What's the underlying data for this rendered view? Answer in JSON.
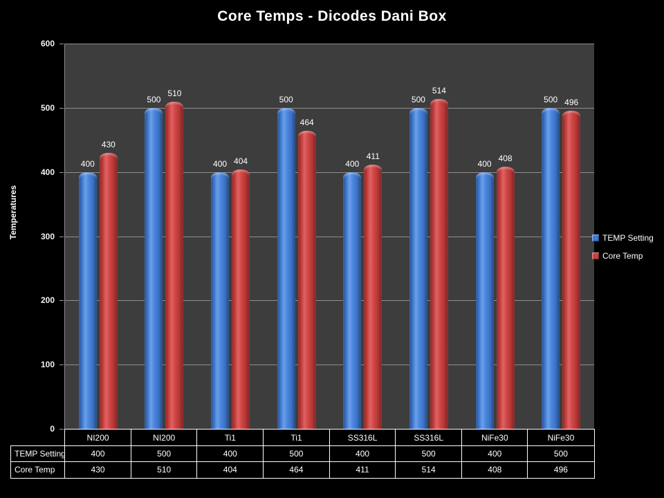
{
  "chart_data": {
    "type": "bar",
    "title": "Core Temps - Dicodes Dani Box",
    "xlabel": "",
    "ylabel": "Temperatures",
    "ylim": [
      0,
      600
    ],
    "yticks": [
      0,
      100,
      200,
      300,
      400,
      500,
      600
    ],
    "grid": true,
    "legend_position": "right",
    "data_labels": true,
    "categories": [
      "NI200",
      "NI200",
      "Ti1",
      "Ti1",
      "SS316L",
      "SS316L",
      "NiFe30",
      "NiFe30"
    ],
    "series": [
      {
        "name": "TEMP Setting",
        "color": "#3E7BD6",
        "values": [
          400,
          500,
          400,
          500,
          400,
          500,
          400,
          500
        ]
      },
      {
        "name": "Core Temp",
        "color": "#CC4040",
        "values": [
          430,
          510,
          404,
          464,
          411,
          514,
          408,
          496
        ]
      }
    ]
  },
  "colors": {
    "background": "#000000",
    "plot_background": "#3D3D3D",
    "gridline": "#9E9E9E",
    "text": "#FFFFFF",
    "table_border": "#FFFFFF"
  }
}
